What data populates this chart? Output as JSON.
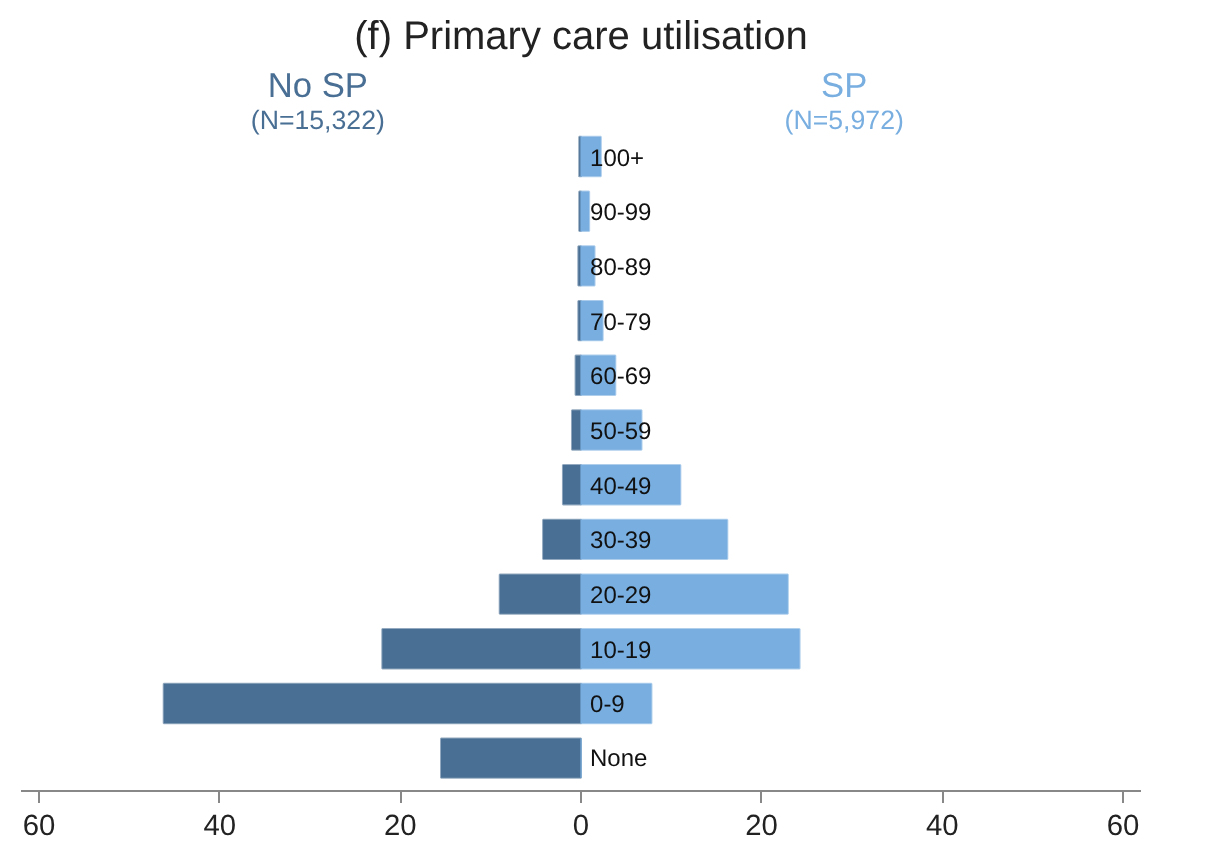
{
  "chart_data": {
    "type": "bar",
    "orientation": "horizontal",
    "title": "(f) Primary care utilisation",
    "categories": [
      "100+",
      "90-99",
      "80-89",
      "70-79",
      "60-69",
      "50-59",
      "40-49",
      "30-39",
      "20-29",
      "10-19",
      "0-9",
      "None"
    ],
    "series": [
      {
        "name": "No SP",
        "color": "#4a6f94",
        "values": [
          -0.2,
          -0.2,
          -0.3,
          -0.3,
          -0.6,
          -1,
          -2,
          -4.2,
          -9,
          -22,
          -46.2,
          -15.5
        ]
      },
      {
        "name": "SP",
        "color": "#78aee0",
        "values": [
          2.2,
          0.9,
          1.5,
          2.4,
          3.8,
          6.7,
          11,
          16.2,
          22.9,
          24.2,
          7.8,
          0
        ]
      }
    ],
    "annotations": [
      "(N=15,322)",
      "(N=5,972)"
    ],
    "xlim": [
      -62,
      62
    ],
    "xticks": [
      {
        "value": -60,
        "label": "60"
      },
      {
        "value": -40,
        "label": "40"
      },
      {
        "value": -20,
        "label": "20"
      },
      0,
      20,
      40,
      60
    ],
    "grid": false,
    "stacked": true
  }
}
